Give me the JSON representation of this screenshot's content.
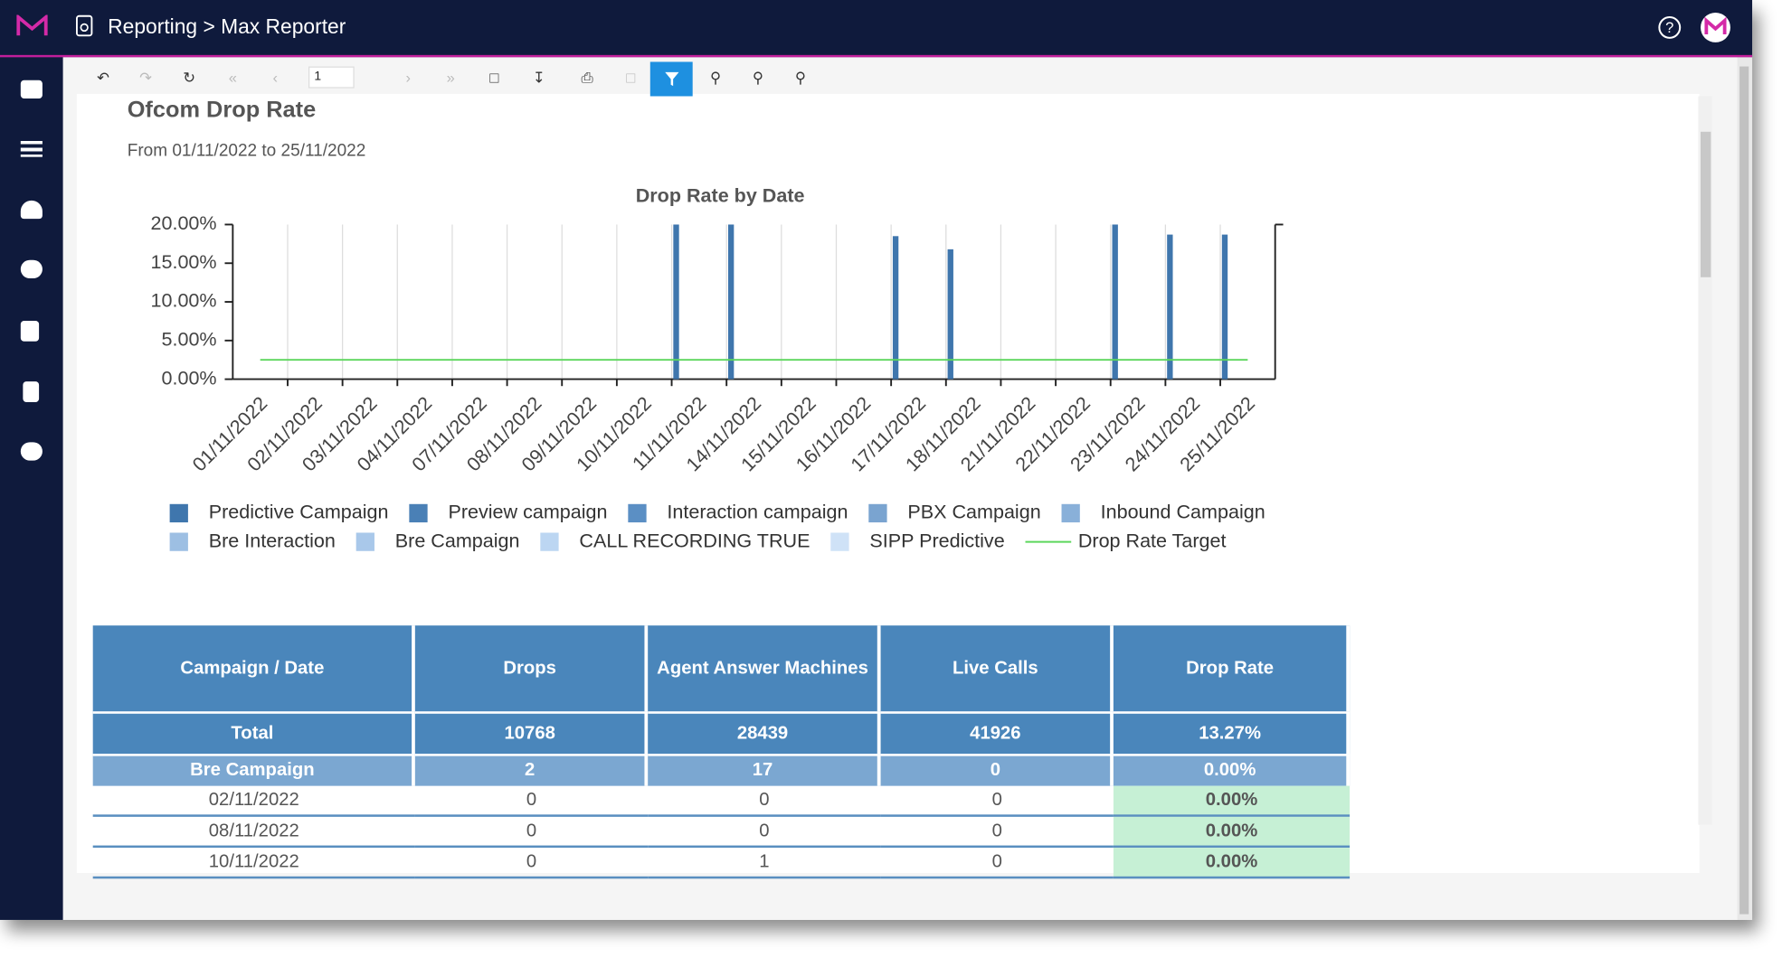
{
  "header": {
    "breadcrumb": "Reporting > Max Reporter"
  },
  "toolbar": {
    "page": "1"
  },
  "report": {
    "title": "Ofcom Drop Rate",
    "subtitle": "From 01/11/2022 to 25/11/2022"
  },
  "chart_data": {
    "type": "bar",
    "title": "Drop Rate by Date",
    "categories": [
      "01/11/2022",
      "02/11/2022",
      "03/11/2022",
      "04/11/2022",
      "07/11/2022",
      "08/11/2022",
      "09/11/2022",
      "10/11/2022",
      "11/11/2022",
      "14/11/2022",
      "15/11/2022",
      "16/11/2022",
      "17/11/2022",
      "18/11/2022",
      "21/11/2022",
      "22/11/2022",
      "23/11/2022",
      "24/11/2022",
      "25/11/2022"
    ],
    "series": [
      {
        "name": "Predictive Campaign",
        "color": "#3f76ad",
        "values": [
          null,
          null,
          null,
          null,
          null,
          null,
          null,
          null,
          20,
          20,
          null,
          null,
          18.5,
          16.8,
          null,
          null,
          20,
          18.7,
          18.7
        ]
      },
      {
        "name": "Preview campaign",
        "color": "#4a80b6",
        "values": [
          null,
          null,
          null,
          null,
          null,
          null,
          null,
          null,
          null,
          null,
          null,
          null,
          null,
          null,
          null,
          null,
          null,
          null,
          null
        ]
      },
      {
        "name": "Interaction campaign",
        "color": "#5b8fc4",
        "values": [
          null,
          null,
          null,
          null,
          null,
          null,
          null,
          null,
          null,
          null,
          null,
          null,
          null,
          null,
          null,
          null,
          null,
          null,
          null
        ]
      },
      {
        "name": "PBX Campaign",
        "color": "#7aa4d0",
        "values": [
          null,
          null,
          null,
          null,
          null,
          null,
          null,
          null,
          null,
          null,
          null,
          null,
          null,
          null,
          null,
          null,
          null,
          null,
          null
        ]
      },
      {
        "name": "Inbound Campaign",
        "color": "#89b0d9",
        "values": [
          null,
          null,
          null,
          null,
          null,
          null,
          null,
          null,
          null,
          null,
          null,
          null,
          null,
          null,
          null,
          null,
          null,
          null,
          null
        ]
      },
      {
        "name": "Bre Interaction",
        "color": "#9dbfe3",
        "values": [
          null,
          null,
          null,
          null,
          null,
          null,
          null,
          null,
          null,
          null,
          null,
          null,
          null,
          null,
          null,
          null,
          null,
          null,
          null
        ]
      },
      {
        "name": "Bre Campaign",
        "color": "#a9c8ea",
        "values": [
          null,
          null,
          null,
          null,
          null,
          null,
          null,
          null,
          null,
          null,
          null,
          null,
          null,
          null,
          null,
          null,
          null,
          null,
          null
        ]
      },
      {
        "name": "CALL RECORDING TRUE",
        "color": "#bcd6f2",
        "values": [
          null,
          null,
          null,
          null,
          null,
          null,
          null,
          null,
          null,
          null,
          null,
          null,
          null,
          null,
          null,
          null,
          null,
          null,
          null
        ]
      },
      {
        "name": "SIPP Predictive",
        "color": "#cfe2f7",
        "values": [
          null,
          null,
          null,
          null,
          null,
          null,
          null,
          null,
          null,
          null,
          null,
          null,
          null,
          null,
          null,
          null,
          null,
          null,
          null
        ]
      },
      {
        "name": "Drop Rate Target",
        "color": "#5cd65c",
        "type": "line",
        "values": [
          2.5,
          2.5,
          2.5,
          2.5,
          2.5,
          2.5,
          2.5,
          2.5,
          2.5,
          2.5,
          2.5,
          2.5,
          2.5,
          2.5,
          2.5,
          2.5,
          2.5,
          2.5,
          2.5
        ]
      }
    ],
    "ylim": [
      0,
      20
    ],
    "yticks": [
      {
        "value": 0,
        "label": "0.00%"
      },
      {
        "value": 5,
        "label": "5.00%"
      },
      {
        "value": 10,
        "label": "10.00%"
      },
      {
        "value": 15,
        "label": "15.00%"
      },
      {
        "value": 20,
        "label": "20.00%"
      }
    ],
    "grid": true
  },
  "table": {
    "headers": [
      "Campaign / Date",
      "Drops",
      "Agent Answer Machines",
      "Live Calls",
      "Drop Rate"
    ],
    "total": [
      "Total",
      10768,
      28439,
      41926,
      "13.27%"
    ],
    "group": [
      "Bre Campaign",
      2,
      17,
      0,
      "0.00%"
    ],
    "rows": [
      [
        "02/11/2022",
        0,
        0,
        0,
        "0.00%"
      ],
      [
        "08/11/2022",
        0,
        0,
        0,
        "0.00%"
      ],
      [
        "10/11/2022",
        0,
        1,
        0,
        "0.00%"
      ]
    ]
  }
}
